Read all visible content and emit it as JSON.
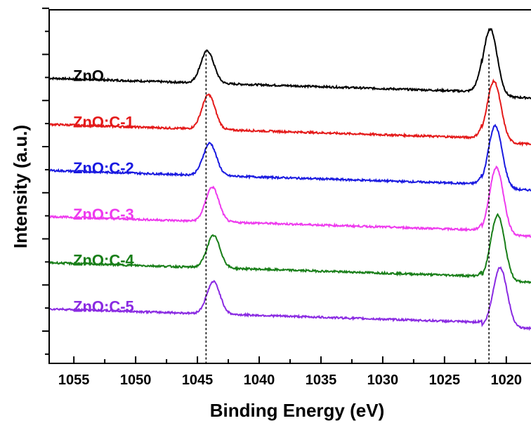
{
  "chart_data": {
    "type": "line",
    "xlabel": "Binding Energy (eV)",
    "ylabel": "Intensity (a.u.)",
    "xlim": [
      1057,
      1018
    ],
    "x_reversed": true,
    "x_ticks": [
      1055,
      1050,
      1045,
      1040,
      1035,
      1030,
      1025,
      1020
    ],
    "y_ticks_shown": false,
    "reference_lines": [
      1044.3,
      1021.4
    ],
    "series": [
      {
        "name": "ZnO",
        "color": "#000000",
        "baseline": 0.0,
        "peak1": {
          "center": 1044.2,
          "height": 0.42
        },
        "peak2": {
          "center": 1021.3,
          "height": 0.88
        }
      },
      {
        "name": "ZnO:C-1",
        "color": "#e41a1a",
        "baseline": -0.6,
        "peak1": {
          "center": 1044.1,
          "height": 0.45
        },
        "peak2": {
          "center": 1021.0,
          "height": 0.8
        }
      },
      {
        "name": "ZnO:C-2",
        "color": "#1a1ae0",
        "baseline": -1.2,
        "peak1": {
          "center": 1044.0,
          "height": 0.42
        },
        "peak2": {
          "center": 1020.9,
          "height": 0.82
        }
      },
      {
        "name": "ZnO:C-3",
        "color": "#ee3bee",
        "baseline": -1.8,
        "peak1": {
          "center": 1043.8,
          "height": 0.45
        },
        "peak2": {
          "center": 1020.8,
          "height": 0.88
        }
      },
      {
        "name": "ZnO:C-4",
        "color": "#187e18",
        "baseline": -2.4,
        "peak1": {
          "center": 1043.7,
          "height": 0.42
        },
        "peak2": {
          "center": 1020.7,
          "height": 0.86
        }
      },
      {
        "name": "ZnO:C-5",
        "color": "#8a2be2",
        "baseline": -3.0,
        "peak1": {
          "center": 1043.7,
          "height": 0.42
        },
        "peak2": {
          "center": 1020.5,
          "height": 0.78
        }
      }
    ]
  }
}
